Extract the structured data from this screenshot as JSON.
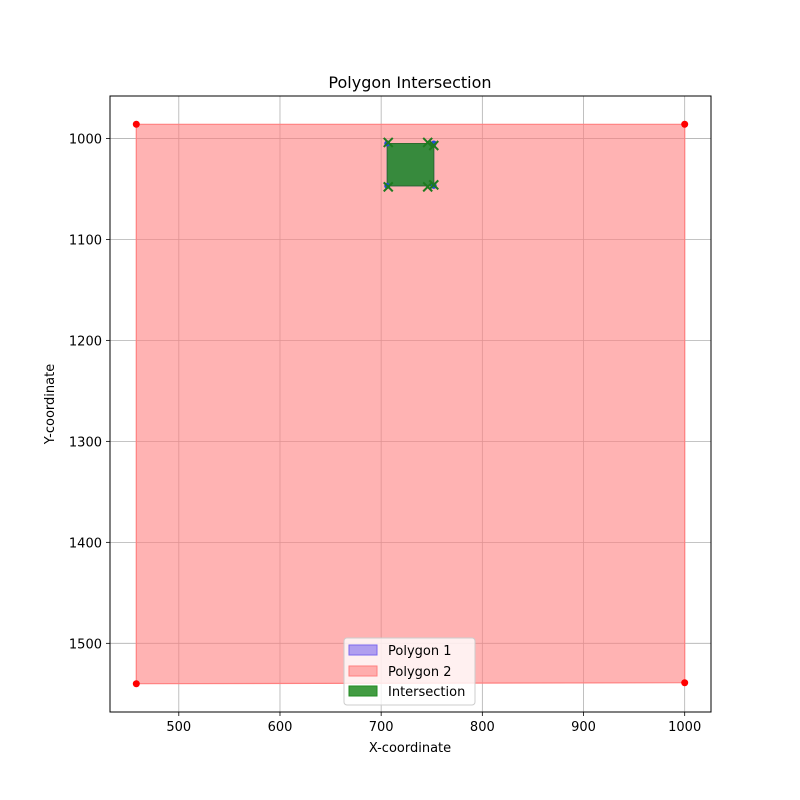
{
  "chart_data": {
    "type": "area",
    "title": "Polygon Intersection",
    "xlabel": "X-coordinate",
    "ylabel": "Y-coordinate",
    "xlim": [
      432,
      1026
    ],
    "ylim": [
      1568,
      958
    ],
    "y_inverted": true,
    "grid": true,
    "xticks": [
      500,
      600,
      700,
      800,
      900,
      1000
    ],
    "yticks": [
      1000,
      1100,
      1200,
      1300,
      1400,
      1500
    ],
    "legend_position": "bottom-center",
    "series": [
      {
        "name": "Polygon 1",
        "color": "#7b68ee",
        "vertices": [
          [
            706,
            1005
          ],
          [
            752,
            1005
          ],
          [
            752,
            1047
          ],
          [
            706,
            1047
          ]
        ]
      },
      {
        "name": "Polygon 2",
        "color": "#ff8080",
        "vertex_color": "#ff0000",
        "vertices": [
          [
            458,
            986
          ],
          [
            1000,
            986
          ],
          [
            1000,
            1539
          ],
          [
            458,
            1540
          ]
        ]
      },
      {
        "name": "Intersection",
        "color": "#228b22",
        "vertices": [
          [
            706,
            1005
          ],
          [
            752,
            1005
          ],
          [
            752,
            1047
          ],
          [
            706,
            1047
          ]
        ],
        "marker_points": [
          [
            707,
            1004
          ],
          [
            746,
            1004
          ],
          [
            752,
            1007
          ],
          [
            707,
            1048
          ],
          [
            746,
            1048
          ],
          [
            752,
            1046
          ]
        ]
      }
    ]
  }
}
